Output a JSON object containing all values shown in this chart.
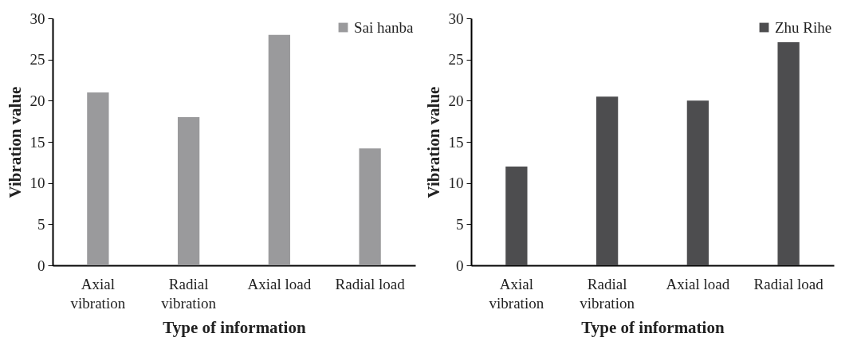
{
  "chart_data": [
    {
      "type": "bar",
      "categories": [
        "Axial vibration",
        "Radial vibration",
        "Axial load",
        "Radial load"
      ],
      "xlabel": "Type of information",
      "ylabel": "Vibration value",
      "ylim": [
        0,
        30
      ],
      "yticks": [
        0,
        5,
        10,
        15,
        20,
        25,
        30
      ],
      "legend": "top right",
      "series": [
        {
          "name": "Sai hanba",
          "color": "#9a9a9c",
          "values": [
            21,
            18,
            28,
            14.2
          ]
        }
      ]
    },
    {
      "type": "bar",
      "categories": [
        "Axial vibration",
        "Radial vibration",
        "Axial load",
        "Radial load"
      ],
      "xlabel": "Type of information",
      "ylabel": "Vibration value",
      "ylim": [
        0,
        30
      ],
      "yticks": [
        0,
        5,
        10,
        15,
        20,
        25,
        30
      ],
      "legend": "top right",
      "series": [
        {
          "name": "Zhu Rihe",
          "color": "#4d4d4f",
          "values": [
            12,
            20.5,
            20,
            27.1
          ]
        }
      ]
    }
  ]
}
